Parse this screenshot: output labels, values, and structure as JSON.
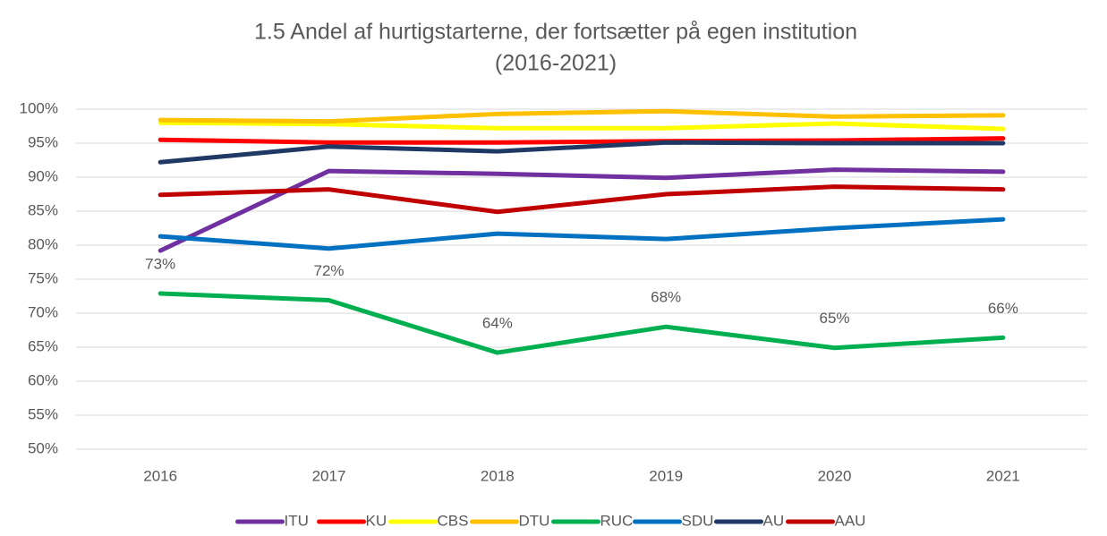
{
  "chart_data": {
    "type": "line",
    "title": [
      "1.5 Andel af hurtigstarterne, der fortsætter på egen institution",
      "(2016-2021)"
    ],
    "categories": [
      "2016",
      "2017",
      "2018",
      "2019",
      "2020",
      "2021"
    ],
    "ylim": [
      50,
      100
    ],
    "yticks": [
      {
        "value": 50,
        "label": "50%"
      },
      {
        "value": 55,
        "label": "55%"
      },
      {
        "value": 60,
        "label": "60%"
      },
      {
        "value": 65,
        "label": "65%"
      },
      {
        "value": 70,
        "label": "70%"
      },
      {
        "value": 75,
        "label": "75%"
      },
      {
        "value": 80,
        "label": "80%"
      },
      {
        "value": 85,
        "label": "85%"
      },
      {
        "value": 90,
        "label": "90%"
      },
      {
        "value": 95,
        "label": "95%"
      },
      {
        "value": 100,
        "label": "100%"
      }
    ],
    "grid": true,
    "legend": "bottom",
    "series": [
      {
        "name": "ITU",
        "color": "#7030a0",
        "values": [
          79.2,
          90.9,
          90.5,
          89.9,
          91.1,
          90.8
        ]
      },
      {
        "name": "KU",
        "color": "#ff0000",
        "values": [
          95.5,
          95.1,
          95.1,
          95.3,
          95.4,
          95.7
        ]
      },
      {
        "name": "CBS",
        "color": "#ffff00",
        "values": [
          98.0,
          97.8,
          97.2,
          97.2,
          97.9,
          97.1
        ]
      },
      {
        "name": "DTU",
        "color": "#ffc000",
        "values": [
          98.4,
          98.2,
          99.3,
          99.7,
          98.9,
          99.1
        ]
      },
      {
        "name": "RUC",
        "color": "#00b050",
        "values": [
          72.9,
          71.9,
          64.2,
          68.0,
          64.9,
          66.4
        ],
        "value_labels": [
          "73%",
          "72%",
          "64%",
          "68%",
          "65%",
          "66%"
        ]
      },
      {
        "name": "SDU",
        "color": "#0070c0",
        "values": [
          81.3,
          79.5,
          81.7,
          80.9,
          82.5,
          83.8
        ]
      },
      {
        "name": "AU",
        "color": "#203864",
        "values": [
          92.2,
          94.5,
          93.8,
          95.1,
          95.0,
          95.0
        ]
      },
      {
        "name": "AAU",
        "color": "#c00000",
        "values": [
          87.4,
          88.2,
          84.9,
          87.5,
          88.6,
          88.2
        ]
      }
    ]
  }
}
